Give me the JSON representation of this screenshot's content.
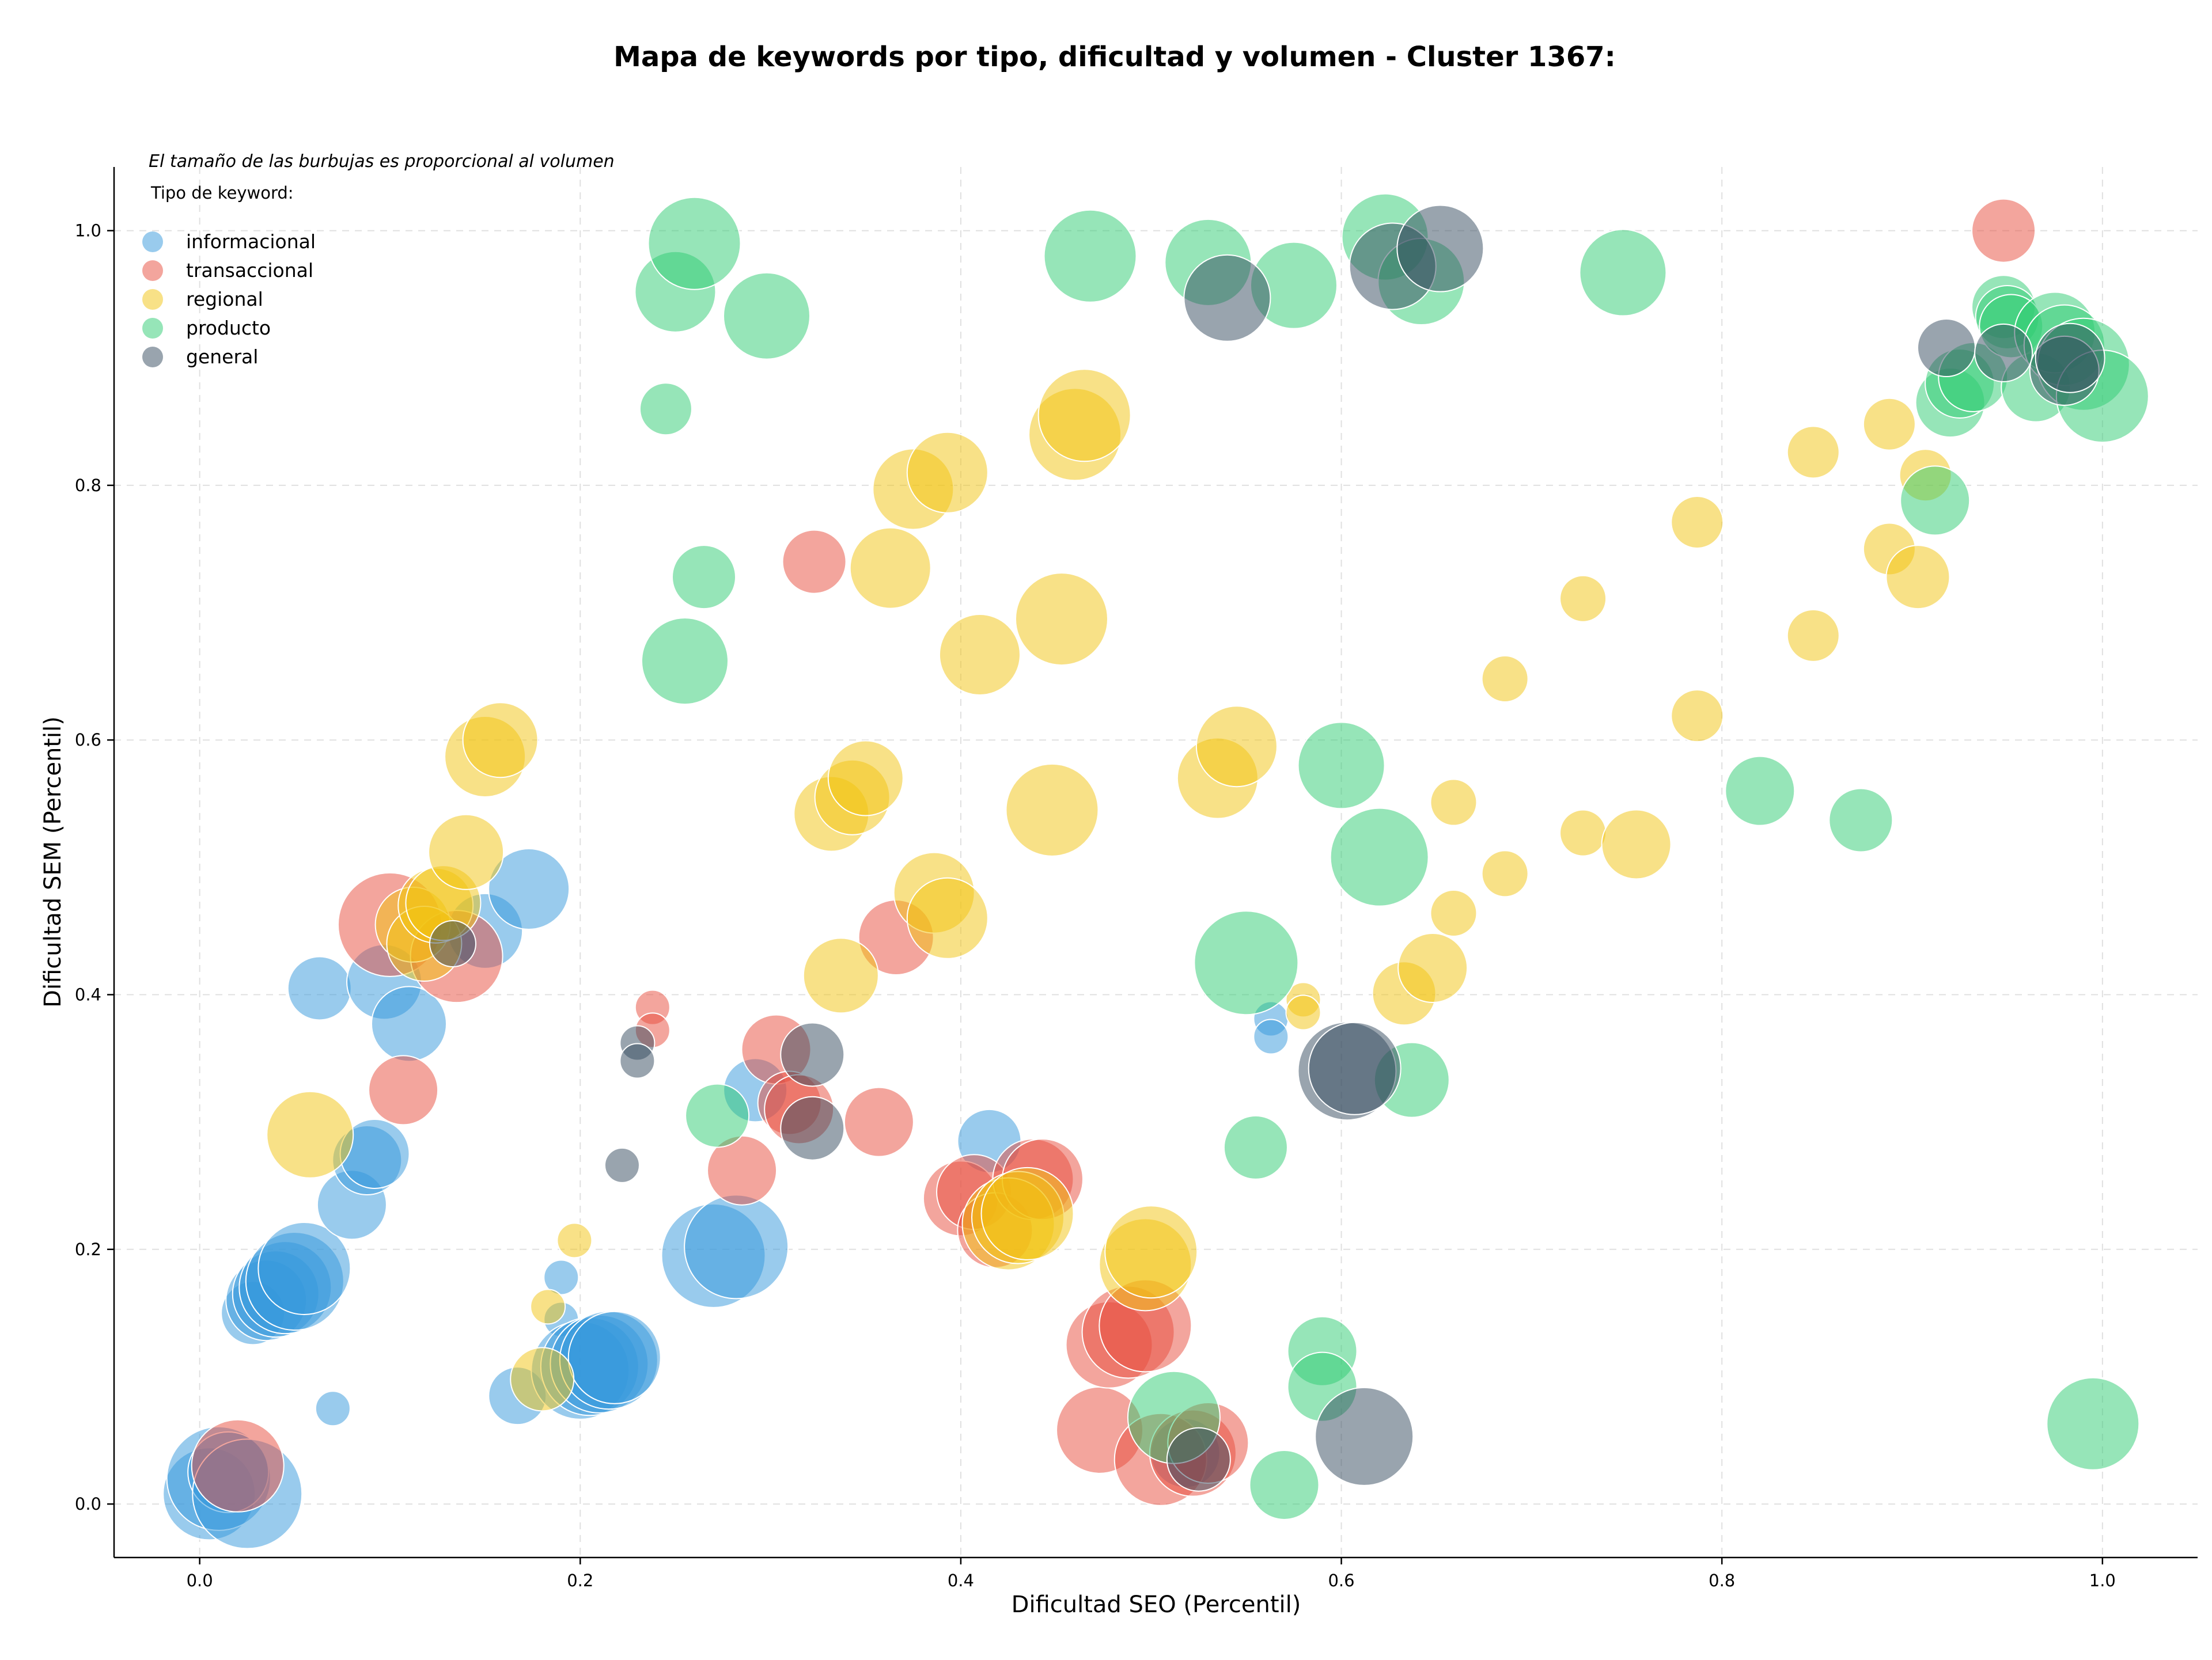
{
  "chart_data": {
    "type": "scatter",
    "title": "Mapa de keywords por tipo, dificultad y volumen - Cluster 1367:",
    "xlabel": "Dificultad SEO (Percentil)",
    "ylabel": "Dificultad SEM (Percentil)",
    "xlim": [
      -0.045,
      1.05
    ],
    "ylim": [
      -0.042,
      1.05
    ],
    "xticks": [
      "0.0",
      "0.2",
      "0.4",
      "0.6",
      "0.8",
      "1.0"
    ],
    "yticks": [
      "0.0",
      "0.2",
      "0.4",
      "0.6",
      "0.8",
      "1.0"
    ],
    "grid": true,
    "size_note": "El tamaño de las burbujas es proporcional al volumen",
    "legend_title": "Tipo de keyword:",
    "legend_position": "top-left",
    "bubble_opacity": 0.5,
    "series": [
      {
        "name": "informacional",
        "color": "#3498db",
        "points": [
          [
            0.005,
            0.008,
            80
          ],
          [
            0.01,
            0.02,
            90
          ],
          [
            0.015,
            0.025,
            70
          ],
          [
            0.025,
            0.008,
            95
          ],
          [
            0.028,
            0.15,
            55
          ],
          [
            0.035,
            0.16,
            70
          ],
          [
            0.04,
            0.165,
            75
          ],
          [
            0.045,
            0.17,
            80
          ],
          [
            0.05,
            0.175,
            85
          ],
          [
            0.055,
            0.185,
            80
          ],
          [
            0.063,
            0.405,
            55
          ],
          [
            0.07,
            0.075,
            30
          ],
          [
            0.08,
            0.235,
            60
          ],
          [
            0.088,
            0.27,
            60
          ],
          [
            0.092,
            0.275,
            60
          ],
          [
            0.097,
            0.41,
            65
          ],
          [
            0.11,
            0.377,
            65
          ],
          [
            0.15,
            0.45,
            65
          ],
          [
            0.173,
            0.483,
            70
          ],
          [
            0.167,
            0.085,
            50
          ],
          [
            0.19,
            0.178,
            30
          ],
          [
            0.19,
            0.145,
            30
          ],
          [
            0.2,
            0.105,
            85
          ],
          [
            0.205,
            0.108,
            85
          ],
          [
            0.21,
            0.11,
            85
          ],
          [
            0.215,
            0.113,
            85
          ],
          [
            0.218,
            0.115,
            80
          ],
          [
            0.27,
            0.195,
            90
          ],
          [
            0.282,
            0.202,
            90
          ],
          [
            0.292,
            0.325,
            55
          ],
          [
            0.415,
            0.285,
            55
          ],
          [
            0.518,
            0.04,
            60
          ],
          [
            0.563,
            0.381,
            30
          ],
          [
            0.563,
            0.367,
            30
          ]
        ]
      },
      {
        "name": "transaccional",
        "color": "#e74c3c",
        "points": [
          [
            0.02,
            0.03,
            80
          ],
          [
            0.1,
            0.455,
            90
          ],
          [
            0.107,
            0.325,
            60
          ],
          [
            0.135,
            0.43,
            80
          ],
          [
            0.238,
            0.39,
            30
          ],
          [
            0.238,
            0.372,
            30
          ],
          [
            0.285,
            0.262,
            60
          ],
          [
            0.303,
            0.357,
            60
          ],
          [
            0.31,
            0.315,
            55
          ],
          [
            0.315,
            0.31,
            60
          ],
          [
            0.323,
            0.74,
            55
          ],
          [
            0.357,
            0.3,
            60
          ],
          [
            0.366,
            0.445,
            65
          ],
          [
            0.4,
            0.24,
            65
          ],
          [
            0.407,
            0.245,
            65
          ],
          [
            0.418,
            0.215,
            65
          ],
          [
            0.438,
            0.255,
            70
          ],
          [
            0.443,
            0.255,
            70
          ],
          [
            0.473,
            0.058,
            75
          ],
          [
            0.478,
            0.125,
            75
          ],
          [
            0.488,
            0.135,
            80
          ],
          [
            0.497,
            0.14,
            80
          ],
          [
            0.505,
            0.035,
            80
          ],
          [
            0.522,
            0.04,
            75
          ],
          [
            0.53,
            0.048,
            70
          ],
          [
            0.948,
            1.0,
            55
          ]
        ]
      },
      {
        "name": "regional",
        "color": "#f1c40f",
        "points": [
          [
            0.058,
            0.29,
            75
          ],
          [
            0.112,
            0.455,
            65
          ],
          [
            0.118,
            0.44,
            65
          ],
          [
            0.124,
            0.47,
            65
          ],
          [
            0.128,
            0.472,
            65
          ],
          [
            0.14,
            0.512,
            65
          ],
          [
            0.15,
            0.587,
            70
          ],
          [
            0.158,
            0.6,
            65
          ],
          [
            0.18,
            0.098,
            55
          ],
          [
            0.183,
            0.155,
            30
          ],
          [
            0.197,
            0.207,
            30
          ],
          [
            0.332,
            0.542,
            65
          ],
          [
            0.337,
            0.415,
            65
          ],
          [
            0.343,
            0.555,
            65
          ],
          [
            0.35,
            0.57,
            65
          ],
          [
            0.363,
            0.735,
            70
          ],
          [
            0.375,
            0.797,
            70
          ],
          [
            0.386,
            0.48,
            70
          ],
          [
            0.393,
            0.81,
            70
          ],
          [
            0.393,
            0.46,
            70
          ],
          [
            0.41,
            0.667,
            70
          ],
          [
            0.425,
            0.22,
            80
          ],
          [
            0.43,
            0.225,
            80
          ],
          [
            0.435,
            0.228,
            80
          ],
          [
            0.448,
            0.545,
            80
          ],
          [
            0.453,
            0.695,
            80
          ],
          [
            0.46,
            0.84,
            80
          ],
          [
            0.465,
            0.855,
            80
          ],
          [
            0.497,
            0.188,
            80
          ],
          [
            0.5,
            0.198,
            80
          ],
          [
            0.535,
            0.57,
            70
          ],
          [
            0.545,
            0.595,
            70
          ],
          [
            0.58,
            0.396,
            30
          ],
          [
            0.58,
            0.386,
            30
          ],
          [
            0.633,
            0.401,
            55
          ],
          [
            0.648,
            0.421,
            60
          ],
          [
            0.659,
            0.551,
            40
          ],
          [
            0.659,
            0.464,
            40
          ],
          [
            0.686,
            0.648,
            40
          ],
          [
            0.686,
            0.495,
            40
          ],
          [
            0.727,
            0.711,
            40
          ],
          [
            0.727,
            0.527,
            40
          ],
          [
            0.755,
            0.518,
            60
          ],
          [
            0.787,
            0.771,
            45
          ],
          [
            0.787,
            0.619,
            45
          ],
          [
            0.848,
            0.826,
            45
          ],
          [
            0.848,
            0.682,
            45
          ],
          [
            0.888,
            0.848,
            45
          ],
          [
            0.888,
            0.75,
            45
          ],
          [
            0.903,
            0.728,
            55
          ],
          [
            0.907,
            0.808,
            45
          ]
        ]
      },
      {
        "name": "producto",
        "color": "#2ecc71",
        "points": [
          [
            0.245,
            0.86,
            45
          ],
          [
            0.25,
            0.952,
            70
          ],
          [
            0.26,
            0.99,
            80
          ],
          [
            0.265,
            0.728,
            55
          ],
          [
            0.255,
            0.662,
            75
          ],
          [
            0.272,
            0.305,
            55
          ],
          [
            0.298,
            0.933,
            75
          ],
          [
            0.468,
            0.98,
            80
          ],
          [
            0.512,
            0.068,
            80
          ],
          [
            0.53,
            0.975,
            75
          ],
          [
            0.55,
            0.425,
            90
          ],
          [
            0.555,
            0.28,
            55
          ],
          [
            0.57,
            0.015,
            60
          ],
          [
            0.575,
            0.957,
            75
          ],
          [
            0.59,
            0.12,
            60
          ],
          [
            0.59,
            0.092,
            60
          ],
          [
            0.6,
            0.58,
            75
          ],
          [
            0.62,
            0.508,
            85
          ],
          [
            0.623,
            0.995,
            75
          ],
          [
            0.637,
            0.333,
            65
          ],
          [
            0.642,
            0.96,
            75
          ],
          [
            0.748,
            0.967,
            75
          ],
          [
            0.82,
            0.56,
            60
          ],
          [
            0.873,
            0.537,
            55
          ],
          [
            0.912,
            0.788,
            60
          ],
          [
            0.92,
            0.865,
            60
          ],
          [
            0.925,
            0.88,
            60
          ],
          [
            0.932,
            0.885,
            60
          ],
          [
            0.948,
            0.94,
            55
          ],
          [
            0.95,
            0.932,
            55
          ],
          [
            0.952,
            0.925,
            55
          ],
          [
            0.965,
            0.877,
            60
          ],
          [
            0.975,
            0.92,
            70
          ],
          [
            0.98,
            0.91,
            70
          ],
          [
            0.99,
            0.895,
            80
          ],
          [
            0.995,
            0.063,
            80
          ],
          [
            1.0,
            0.87,
            80
          ]
        ]
      },
      {
        "name": "general",
        "color": "#34495e",
        "points": [
          [
            0.133,
            0.44,
            40
          ],
          [
            0.222,
            0.266,
            30
          ],
          [
            0.23,
            0.362,
            30
          ],
          [
            0.23,
            0.348,
            30
          ],
          [
            0.322,
            0.353,
            55
          ],
          [
            0.322,
            0.295,
            55
          ],
          [
            0.525,
            0.035,
            55
          ],
          [
            0.54,
            0.947,
            75
          ],
          [
            0.603,
            0.34,
            85
          ],
          [
            0.607,
            0.342,
            80
          ],
          [
            0.612,
            0.053,
            85
          ],
          [
            0.627,
            0.972,
            75
          ],
          [
            0.652,
            0.986,
            75
          ],
          [
            0.918,
            0.908,
            50
          ],
          [
            0.948,
            0.904,
            50
          ],
          [
            0.98,
            0.89,
            60
          ],
          [
            0.983,
            0.9,
            60
          ]
        ]
      }
    ]
  }
}
